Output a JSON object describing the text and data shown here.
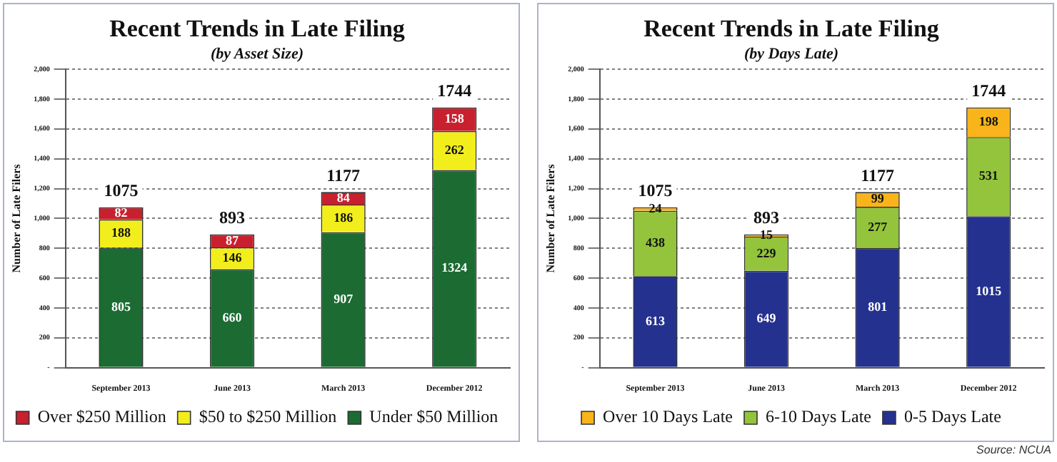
{
  "chart_data": [
    {
      "type": "bar",
      "title": "Recent Trends in Late Filing",
      "subtitle": "(by Asset Size)",
      "ylabel": "Number of Late Filers",
      "categories": [
        "September 2013",
        "June 2013",
        "March 2013",
        "December 2012"
      ],
      "stacked": true,
      "series": [
        {
          "name": "Under $50 Million",
          "color": "#1b6b32",
          "values": [
            805,
            660,
            907,
            1324
          ]
        },
        {
          "name": "$50 to $250 Million",
          "color": "#f2ee1c",
          "values": [
            188,
            146,
            186,
            262
          ]
        },
        {
          "name": "Over $250 Million",
          "color": "#c8202e",
          "values": [
            82,
            87,
            84,
            158
          ]
        }
      ],
      "totals": [
        "1075",
        "893",
        "1177",
        "1744"
      ],
      "data_labels": true,
      "ylim": [
        0,
        2000
      ],
      "yticks": [
        {
          "value": 0,
          "label": "-"
        },
        {
          "value": 200,
          "label": "200"
        },
        {
          "value": 400,
          "label": "400"
        },
        {
          "value": 600,
          "label": "600"
        },
        {
          "value": 800,
          "label": "800"
        },
        {
          "value": 1000,
          "label": "1,000"
        },
        {
          "value": 1200,
          "label": "1,200"
        },
        {
          "value": 1400,
          "label": "1,400"
        },
        {
          "value": 1600,
          "label": "1,600"
        },
        {
          "value": 1800,
          "label": "1,800"
        },
        {
          "value": 2000,
          "label": "2,000"
        }
      ],
      "grid": "y",
      "legend": "bottom"
    },
    {
      "type": "bar",
      "title": "Recent Trends in Late Filing",
      "subtitle": "(by Days Late)",
      "ylabel": "Number of Late Filers",
      "categories": [
        "September 2013",
        "June 2013",
        "March 2013",
        "December 2012"
      ],
      "stacked": true,
      "series": [
        {
          "name": "0-5 Days Late",
          "color": "#24318f",
          "values": [
            613,
            649,
            801,
            1015
          ]
        },
        {
          "name": "6-10 Days Late",
          "color": "#93c43b",
          "values": [
            438,
            229,
            277,
            531
          ]
        },
        {
          "name": "Over 10 Days Late",
          "color": "#f8b41a",
          "values": [
            24,
            15,
            99,
            198
          ]
        }
      ],
      "totals": [
        "1075",
        "893",
        "1177",
        "1744"
      ],
      "data_labels": true,
      "ylim": [
        0,
        2000
      ],
      "yticks": [
        {
          "value": 0,
          "label": "-"
        },
        {
          "value": 200,
          "label": "200"
        },
        {
          "value": 400,
          "label": "400"
        },
        {
          "value": 600,
          "label": "600"
        },
        {
          "value": 800,
          "label": "800"
        },
        {
          "value": 1000,
          "label": "1,000"
        },
        {
          "value": 1200,
          "label": "1,200"
        },
        {
          "value": 1400,
          "label": "1,400"
        },
        {
          "value": 1600,
          "label": "1,600"
        },
        {
          "value": 1800,
          "label": "1,800"
        },
        {
          "value": 2000,
          "label": "2,000"
        }
      ],
      "grid": "y",
      "legend": "bottom",
      "annotations": [
        "Source: NCUA"
      ]
    }
  ]
}
